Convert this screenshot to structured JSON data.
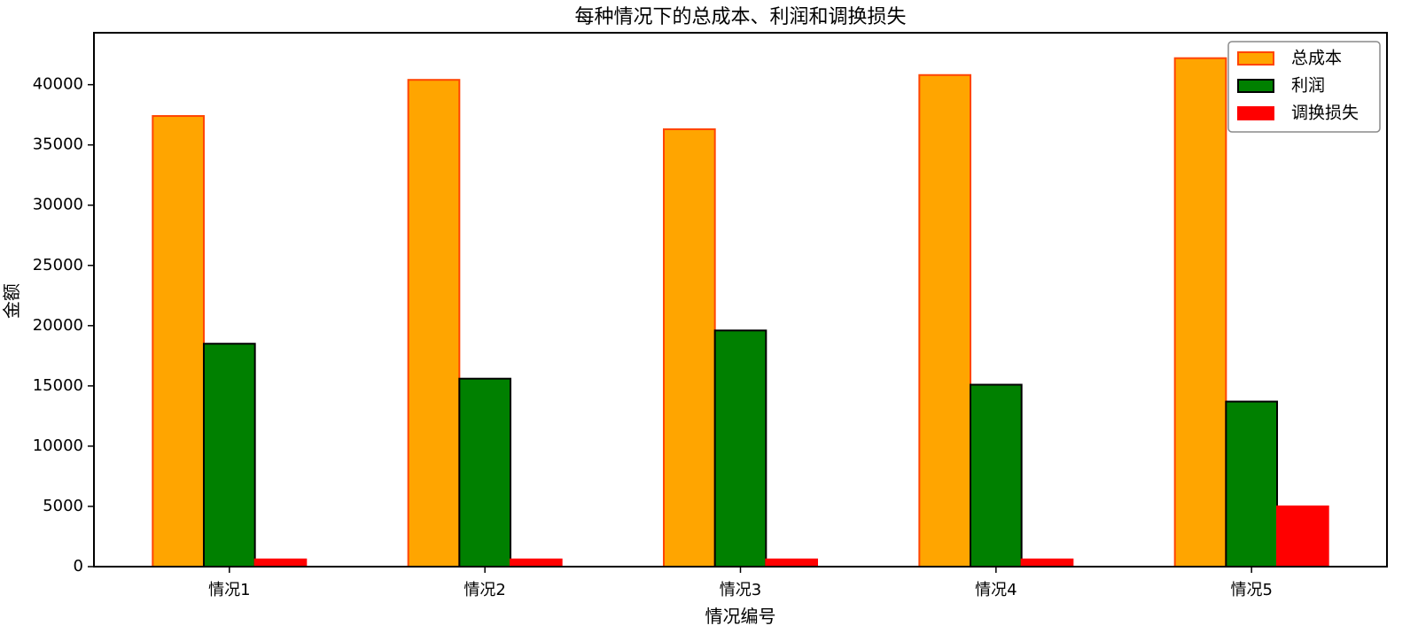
{
  "chart_data": {
    "type": "bar",
    "title": "每种情况下的总成本、利润和调换损失",
    "xlabel": "情况编号",
    "ylabel": "金额",
    "categories": [
      "情况1",
      "情况2",
      "情况3",
      "情况4",
      "情况5"
    ],
    "series": [
      {
        "name": "总成本",
        "values": [
          37400,
          40400,
          36300,
          40800,
          42200
        ],
        "color": "#FFA500",
        "edge": "#FF4500"
      },
      {
        "name": "利润",
        "values": [
          18500,
          15600,
          19600,
          15100,
          13700
        ],
        "color": "#008000",
        "edge": "#000000"
      },
      {
        "name": "调换损失",
        "values": [
          600,
          600,
          600,
          600,
          5000
        ],
        "color": "#FF0000",
        "edge": "#FF0000"
      }
    ],
    "ylim": [
      0,
      44310
    ],
    "yticks": [
      0,
      5000,
      10000,
      15000,
      20000,
      25000,
      30000,
      35000,
      40000
    ],
    "legend": "top-right",
    "grid": false
  }
}
